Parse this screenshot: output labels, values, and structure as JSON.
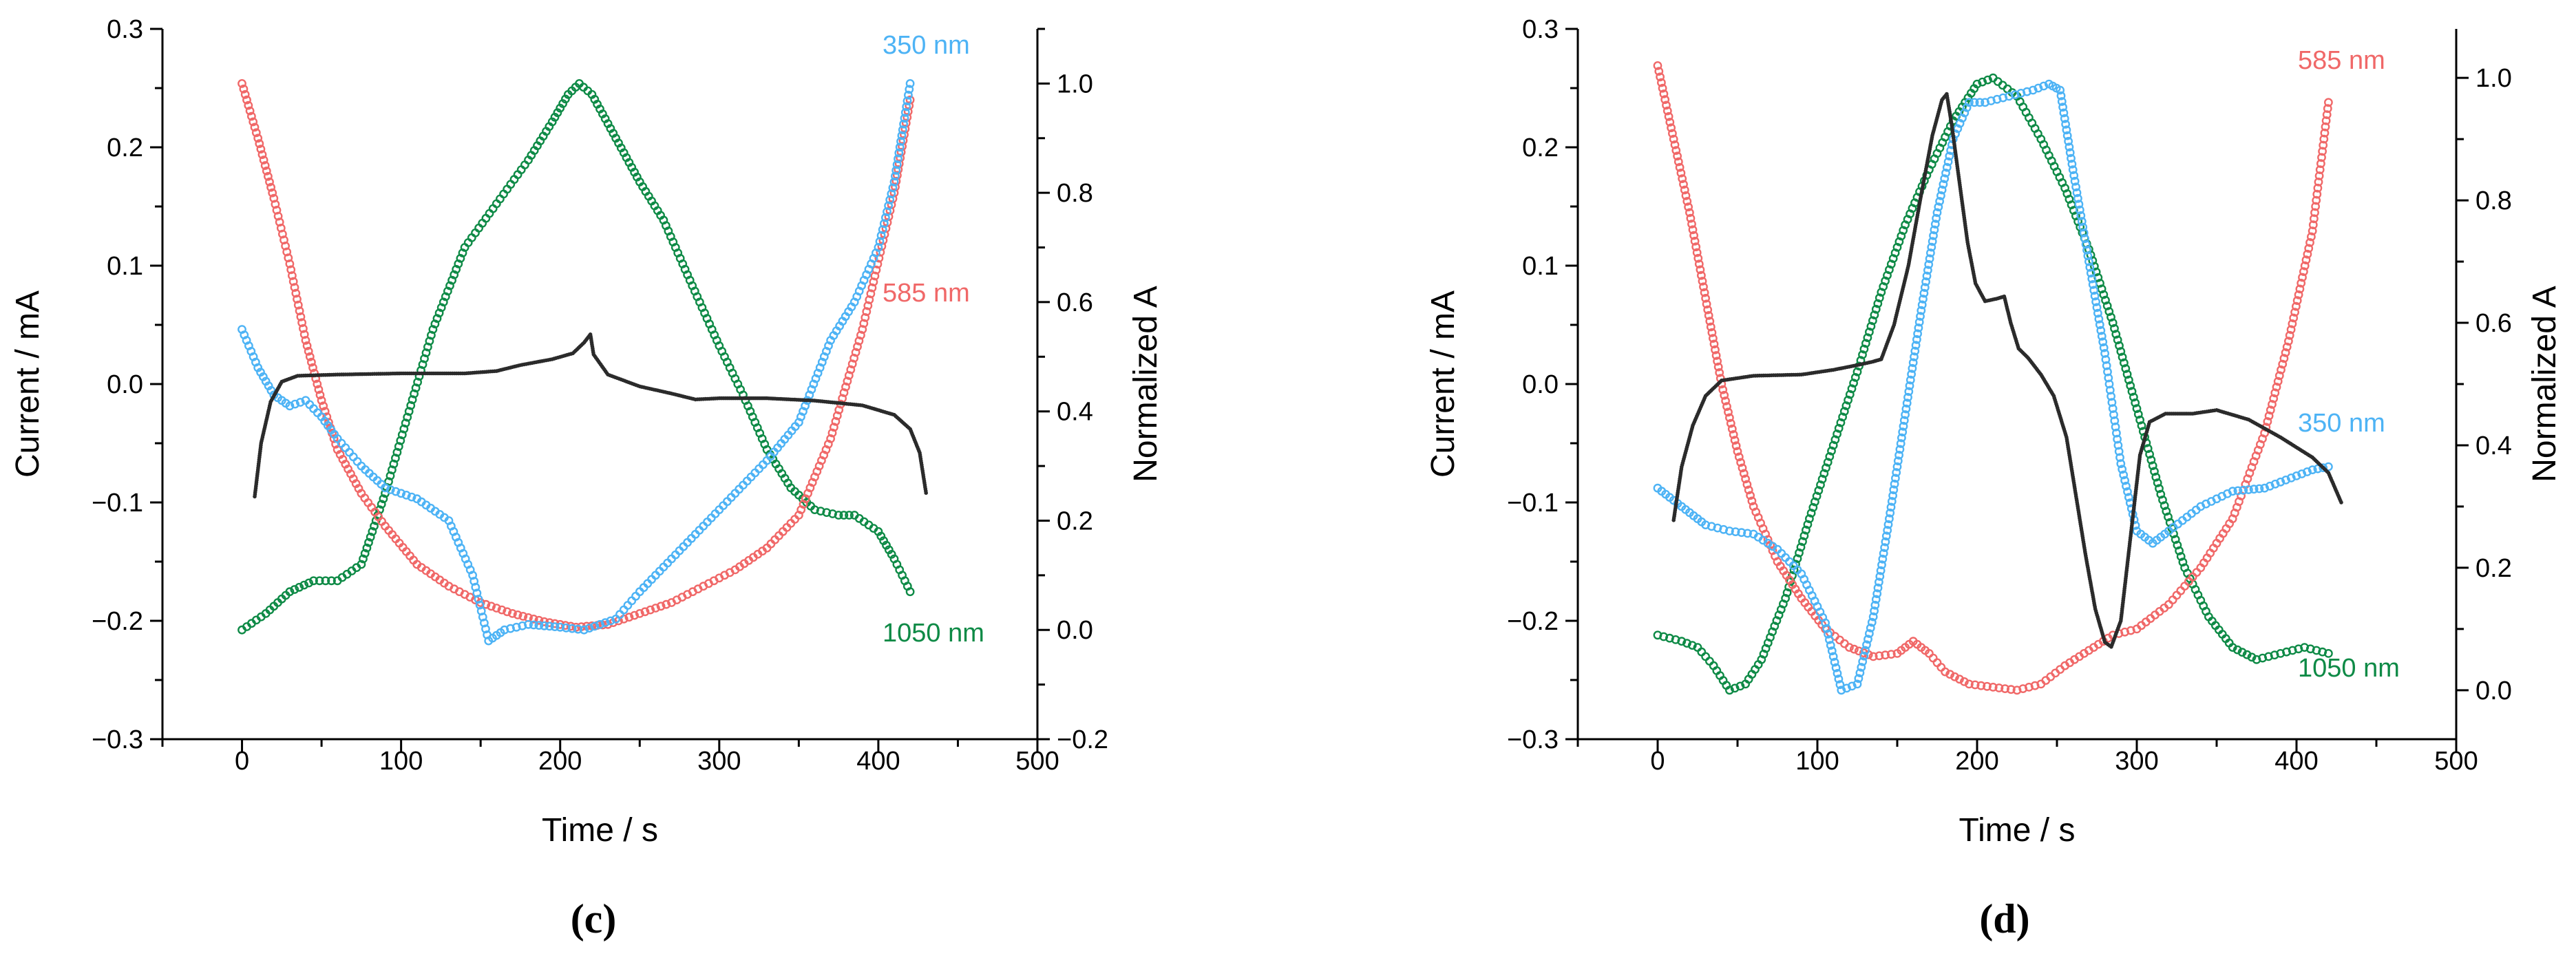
{
  "colors": {
    "c350": "#4db3f5",
    "c585": "#f06868",
    "c1050": "#0e8a46",
    "current": "#2b2b2b",
    "axis": "#000000"
  },
  "chart_data": [
    {
      "type": "scatter",
      "panel_label": "(c)",
      "xlabel": "Time / s",
      "ylabel_left": "Current / mA",
      "ylabel_right": "Normalized A",
      "xlim": [
        -50,
        500
      ],
      "ylim_left": [
        -0.3,
        0.3
      ],
      "ylim_right": [
        -0.2,
        1.1
      ],
      "x_ticks": [
        "0",
        "100",
        "200",
        "300",
        "400",
        "500"
      ],
      "y_left_ticks": [
        "−0.3",
        "−0.2",
        "−0.1",
        "0.0",
        "0.1",
        "0.2",
        "0.3"
      ],
      "y_right_ticks": [
        "−0.2",
        "0.0",
        "0.2",
        "0.4",
        "0.6",
        "0.8",
        "1.0"
      ],
      "current": {
        "name": "Current",
        "axis": "left",
        "points": [
          [
            8,
            -0.095
          ],
          [
            12,
            -0.05
          ],
          [
            18,
            -0.015
          ],
          [
            25,
            0.002
          ],
          [
            35,
            0.007
          ],
          [
            60,
            0.008
          ],
          [
            100,
            0.009
          ],
          [
            140,
            0.009
          ],
          [
            160,
            0.011
          ],
          [
            175,
            0.016
          ],
          [
            195,
            0.021
          ],
          [
            208,
            0.026
          ],
          [
            215,
            0.035
          ],
          [
            219,
            0.042
          ],
          [
            221,
            0.025
          ],
          [
            230,
            0.008
          ],
          [
            250,
            -0.002
          ],
          [
            270,
            -0.008
          ],
          [
            285,
            -0.013
          ],
          [
            300,
            -0.012
          ],
          [
            330,
            -0.012
          ],
          [
            360,
            -0.014
          ],
          [
            390,
            -0.018
          ],
          [
            410,
            -0.026
          ],
          [
            420,
            -0.038
          ],
          [
            426,
            -0.058
          ],
          [
            430,
            -0.092
          ]
        ]
      },
      "series": [
        {
          "name": "350 nm",
          "axis": "right",
          "color_key": "c350",
          "points": [
            [
              0,
              0.55
            ],
            [
              10,
              0.48
            ],
            [
              20,
              0.43
            ],
            [
              30,
              0.41
            ],
            [
              40,
              0.42
            ],
            [
              50,
              0.39
            ],
            [
              60,
              0.35
            ],
            [
              75,
              0.3
            ],
            [
              90,
              0.26
            ],
            [
              110,
              0.24
            ],
            [
              130,
              0.2
            ],
            [
              145,
              0.1
            ],
            [
              155,
              -0.02
            ],
            [
              165,
              0.0
            ],
            [
              180,
              0.01
            ],
            [
              200,
              0.005
            ],
            [
              215,
              0.0
            ],
            [
              235,
              0.02
            ],
            [
              250,
              0.07
            ],
            [
              270,
              0.13
            ],
            [
              290,
              0.19
            ],
            [
              310,
              0.25
            ],
            [
              330,
              0.31
            ],
            [
              350,
              0.38
            ],
            [
              370,
              0.53
            ],
            [
              385,
              0.6
            ],
            [
              400,
              0.7
            ],
            [
              410,
              0.82
            ],
            [
              420,
              1.0
            ]
          ]
        },
        {
          "name": "585 nm",
          "axis": "right",
          "color_key": "c585",
          "points": [
            [
              0,
              1.0
            ],
            [
              10,
              0.9
            ],
            [
              20,
              0.79
            ],
            [
              30,
              0.67
            ],
            [
              40,
              0.53
            ],
            [
              50,
              0.42
            ],
            [
              60,
              0.33
            ],
            [
              75,
              0.25
            ],
            [
              90,
              0.19
            ],
            [
              110,
              0.12
            ],
            [
              130,
              0.08
            ],
            [
              150,
              0.05
            ],
            [
              170,
              0.03
            ],
            [
              190,
              0.015
            ],
            [
              210,
              0.005
            ],
            [
              230,
              0.01
            ],
            [
              250,
              0.03
            ],
            [
              270,
              0.05
            ],
            [
              290,
              0.08
            ],
            [
              310,
              0.11
            ],
            [
              330,
              0.15
            ],
            [
              350,
              0.21
            ],
            [
              370,
              0.35
            ],
            [
              390,
              0.55
            ],
            [
              410,
              0.8
            ],
            [
              420,
              0.97
            ]
          ]
        },
        {
          "name": "1050 nm",
          "axis": "right",
          "color_key": "c1050",
          "points": [
            [
              0,
              0.0
            ],
            [
              15,
              0.03
            ],
            [
              30,
              0.07
            ],
            [
              45,
              0.09
            ],
            [
              60,
              0.09
            ],
            [
              75,
              0.12
            ],
            [
              90,
              0.25
            ],
            [
              105,
              0.4
            ],
            [
              120,
              0.55
            ],
            [
              140,
              0.7
            ],
            [
              160,
              0.78
            ],
            [
              180,
              0.86
            ],
            [
              195,
              0.93
            ],
            [
              205,
              0.98
            ],
            [
              212,
              1.0
            ],
            [
              220,
              0.98
            ],
            [
              235,
              0.9
            ],
            [
              250,
              0.82
            ],
            [
              265,
              0.75
            ],
            [
              280,
              0.65
            ],
            [
              300,
              0.52
            ],
            [
              315,
              0.43
            ],
            [
              330,
              0.33
            ],
            [
              345,
              0.26
            ],
            [
              360,
              0.22
            ],
            [
              375,
              0.21
            ],
            [
              385,
              0.21
            ],
            [
              400,
              0.18
            ],
            [
              410,
              0.13
            ],
            [
              420,
              0.07
            ]
          ]
        }
      ],
      "annotations": [
        {
          "text": "350 nm",
          "color_key": "c350"
        },
        {
          "text": "585 nm",
          "color_key": "c585"
        },
        {
          "text": "1050 nm",
          "color_key": "c1050"
        }
      ]
    },
    {
      "type": "scatter",
      "panel_label": "(d)",
      "xlabel": "Time / s",
      "ylabel_left": "Current / mA",
      "ylabel_right": "Normalized A",
      "xlim": [
        -50,
        500
      ],
      "ylim_left": [
        -0.3,
        0.3
      ],
      "ylim_right": [
        -0.08,
        1.08
      ],
      "x_ticks": [
        "0",
        "100",
        "200",
        "300",
        "400",
        "500"
      ],
      "y_left_ticks": [
        "−0.3",
        "−0.2",
        "−0.1",
        "0.0",
        "0.1",
        "0.2",
        "0.3"
      ],
      "y_right_ticks": [
        "0.0",
        "0.2",
        "0.4",
        "0.6",
        "0.8",
        "1.0"
      ],
      "current": {
        "name": "Current",
        "axis": "left",
        "points": [
          [
            10,
            -0.115
          ],
          [
            15,
            -0.07
          ],
          [
            22,
            -0.035
          ],
          [
            30,
            -0.01
          ],
          [
            40,
            0.003
          ],
          [
            60,
            0.007
          ],
          [
            90,
            0.008
          ],
          [
            110,
            0.012
          ],
          [
            125,
            0.016
          ],
          [
            135,
            0.019
          ],
          [
            140,
            0.021
          ],
          [
            148,
            0.05
          ],
          [
            157,
            0.1
          ],
          [
            165,
            0.16
          ],
          [
            172,
            0.21
          ],
          [
            178,
            0.24
          ],
          [
            181,
            0.245
          ],
          [
            184,
            0.22
          ],
          [
            189,
            0.17
          ],
          [
            194,
            0.12
          ],
          [
            199,
            0.085
          ],
          [
            205,
            0.07
          ],
          [
            212,
            0.072
          ],
          [
            217,
            0.074
          ],
          [
            221,
            0.052
          ],
          [
            226,
            0.03
          ],
          [
            232,
            0.022
          ],
          [
            240,
            0.008
          ],
          [
            248,
            -0.01
          ],
          [
            256,
            -0.045
          ],
          [
            262,
            -0.095
          ],
          [
            268,
            -0.145
          ],
          [
            274,
            -0.19
          ],
          [
            280,
            -0.218
          ],
          [
            284,
            -0.222
          ],
          [
            290,
            -0.2
          ],
          [
            296,
            -0.13
          ],
          [
            302,
            -0.06
          ],
          [
            308,
            -0.032
          ],
          [
            318,
            -0.025
          ],
          [
            335,
            -0.025
          ],
          [
            350,
            -0.022
          ],
          [
            370,
            -0.03
          ],
          [
            390,
            -0.045
          ],
          [
            410,
            -0.062
          ],
          [
            420,
            -0.075
          ],
          [
            428,
            -0.1
          ]
        ]
      },
      "series": [
        {
          "name": "350 nm",
          "axis": "right",
          "color_key": "c350",
          "points": [
            [
              0,
              0.33
            ],
            [
              10,
              0.31
            ],
            [
              20,
              0.29
            ],
            [
              30,
              0.27
            ],
            [
              45,
              0.26
            ],
            [
              60,
              0.255
            ],
            [
              75,
              0.23
            ],
            [
              90,
              0.19
            ],
            [
              105,
              0.11
            ],
            [
              115,
              0.0
            ],
            [
              125,
              0.01
            ],
            [
              135,
              0.12
            ],
            [
              145,
              0.28
            ],
            [
              155,
              0.45
            ],
            [
              165,
              0.62
            ],
            [
              175,
              0.78
            ],
            [
              185,
              0.9
            ],
            [
              195,
              0.96
            ],
            [
              205,
              0.96
            ],
            [
              220,
              0.97
            ],
            [
              235,
              0.98
            ],
            [
              245,
              0.99
            ],
            [
              252,
              0.98
            ],
            [
              260,
              0.85
            ],
            [
              270,
              0.7
            ],
            [
              280,
              0.55
            ],
            [
              290,
              0.37
            ],
            [
              300,
              0.26
            ],
            [
              310,
              0.24
            ],
            [
              320,
              0.26
            ],
            [
              340,
              0.3
            ],
            [
              360,
              0.325
            ],
            [
              380,
              0.33
            ],
            [
              400,
              0.35
            ],
            [
              410,
              0.36
            ],
            [
              420,
              0.365
            ]
          ]
        },
        {
          "name": "585 nm",
          "axis": "right",
          "color_key": "c585",
          "points": [
            [
              0,
              1.02
            ],
            [
              10,
              0.9
            ],
            [
              20,
              0.78
            ],
            [
              30,
              0.64
            ],
            [
              40,
              0.5
            ],
            [
              50,
              0.39
            ],
            [
              60,
              0.3
            ],
            [
              75,
              0.21
            ],
            [
              90,
              0.15
            ],
            [
              105,
              0.1
            ],
            [
              120,
              0.07
            ],
            [
              135,
              0.055
            ],
            [
              150,
              0.06
            ],
            [
              160,
              0.08
            ],
            [
              170,
              0.06
            ],
            [
              180,
              0.03
            ],
            [
              195,
              0.01
            ],
            [
              210,
              0.005
            ],
            [
              225,
              0.0
            ],
            [
              240,
              0.01
            ],
            [
              255,
              0.04
            ],
            [
              270,
              0.065
            ],
            [
              285,
              0.09
            ],
            [
              300,
              0.1
            ],
            [
              320,
              0.14
            ],
            [
              340,
              0.2
            ],
            [
              360,
              0.28
            ],
            [
              380,
              0.42
            ],
            [
              395,
              0.57
            ],
            [
              410,
              0.75
            ],
            [
              420,
              0.96
            ]
          ]
        },
        {
          "name": "1050 nm",
          "axis": "right",
          "color_key": "c1050",
          "points": [
            [
              0,
              0.09
            ],
            [
              15,
              0.08
            ],
            [
              25,
              0.07
            ],
            [
              35,
              0.04
            ],
            [
              45,
              0.0
            ],
            [
              55,
              0.01
            ],
            [
              65,
              0.05
            ],
            [
              80,
              0.15
            ],
            [
              95,
              0.28
            ],
            [
              110,
              0.4
            ],
            [
              125,
              0.52
            ],
            [
              140,
              0.65
            ],
            [
              155,
              0.76
            ],
            [
              170,
              0.85
            ],
            [
              185,
              0.93
            ],
            [
              200,
              0.99
            ],
            [
              210,
              1.0
            ],
            [
              225,
              0.97
            ],
            [
              240,
              0.9
            ],
            [
              255,
              0.82
            ],
            [
              270,
              0.72
            ],
            [
              285,
              0.6
            ],
            [
              300,
              0.46
            ],
            [
              315,
              0.32
            ],
            [
              330,
              0.2
            ],
            [
              345,
              0.12
            ],
            [
              360,
              0.07
            ],
            [
              375,
              0.05
            ],
            [
              390,
              0.06
            ],
            [
              405,
              0.07
            ],
            [
              420,
              0.06
            ]
          ]
        }
      ],
      "annotations": [
        {
          "text": "585 nm",
          "color_key": "c585"
        },
        {
          "text": "350 nm",
          "color_key": "c350"
        },
        {
          "text": "1050 nm",
          "color_key": "c1050"
        }
      ]
    }
  ]
}
